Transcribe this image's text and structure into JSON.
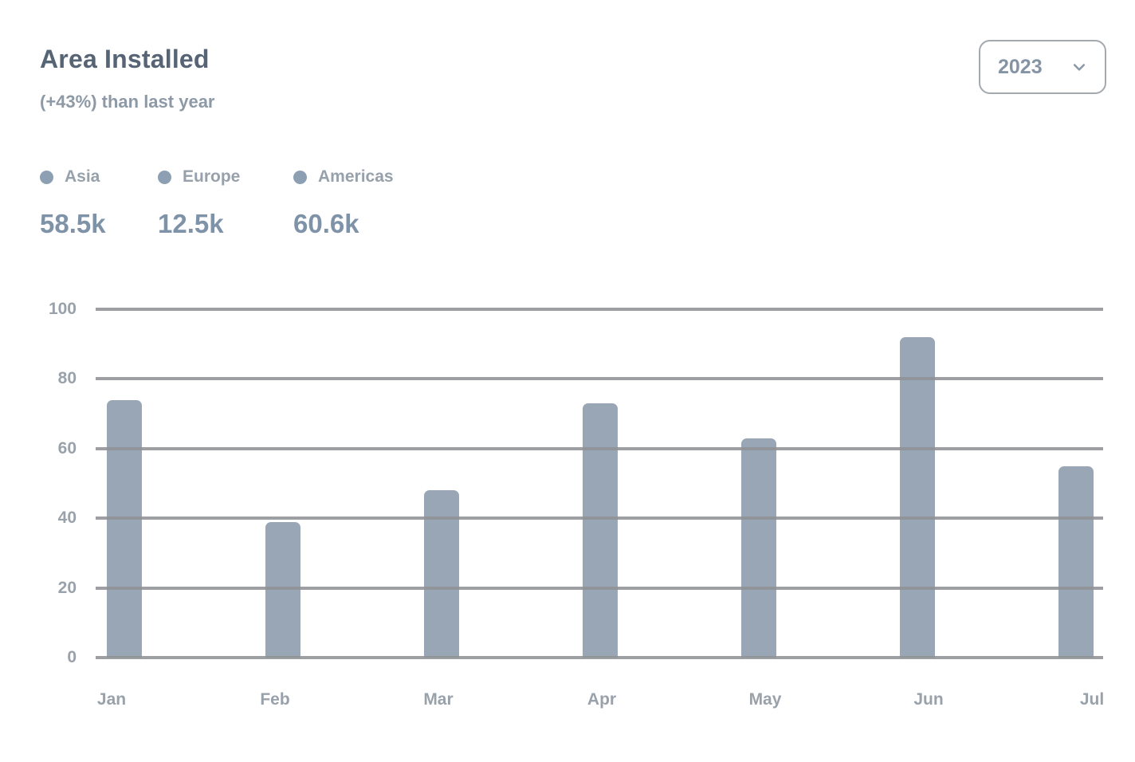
{
  "header": {
    "title": "Area Installed",
    "subtitle": "(+43%) than last year",
    "year_select": {
      "value": "2023"
    }
  },
  "legend": {
    "items": [
      {
        "label": "Asia",
        "total": "58.5k",
        "color": "#8da0b3"
      },
      {
        "label": "Europe",
        "total": "12.5k",
        "color": "#8da0b3"
      },
      {
        "label": "Americas",
        "total": "60.6k",
        "color": "#8da0b3"
      }
    ]
  },
  "chart_data": {
    "type": "bar",
    "title": "Area Installed",
    "subtitle": "(+43%) than last year",
    "categories": [
      "Jan",
      "Feb",
      "Mar",
      "Apr",
      "May",
      "Jun",
      "Jul"
    ],
    "series": [
      {
        "name": "2023",
        "values": [
          74,
          39,
          48,
          73,
          63,
          92,
          55
        ]
      }
    ],
    "ylim": [
      0,
      100
    ],
    "yticks": [
      0,
      20,
      40,
      60,
      80,
      100
    ],
    "grid": true,
    "legend_position": "top-left",
    "bar_color": "#98a6b5",
    "grid_color": "#909295"
  }
}
